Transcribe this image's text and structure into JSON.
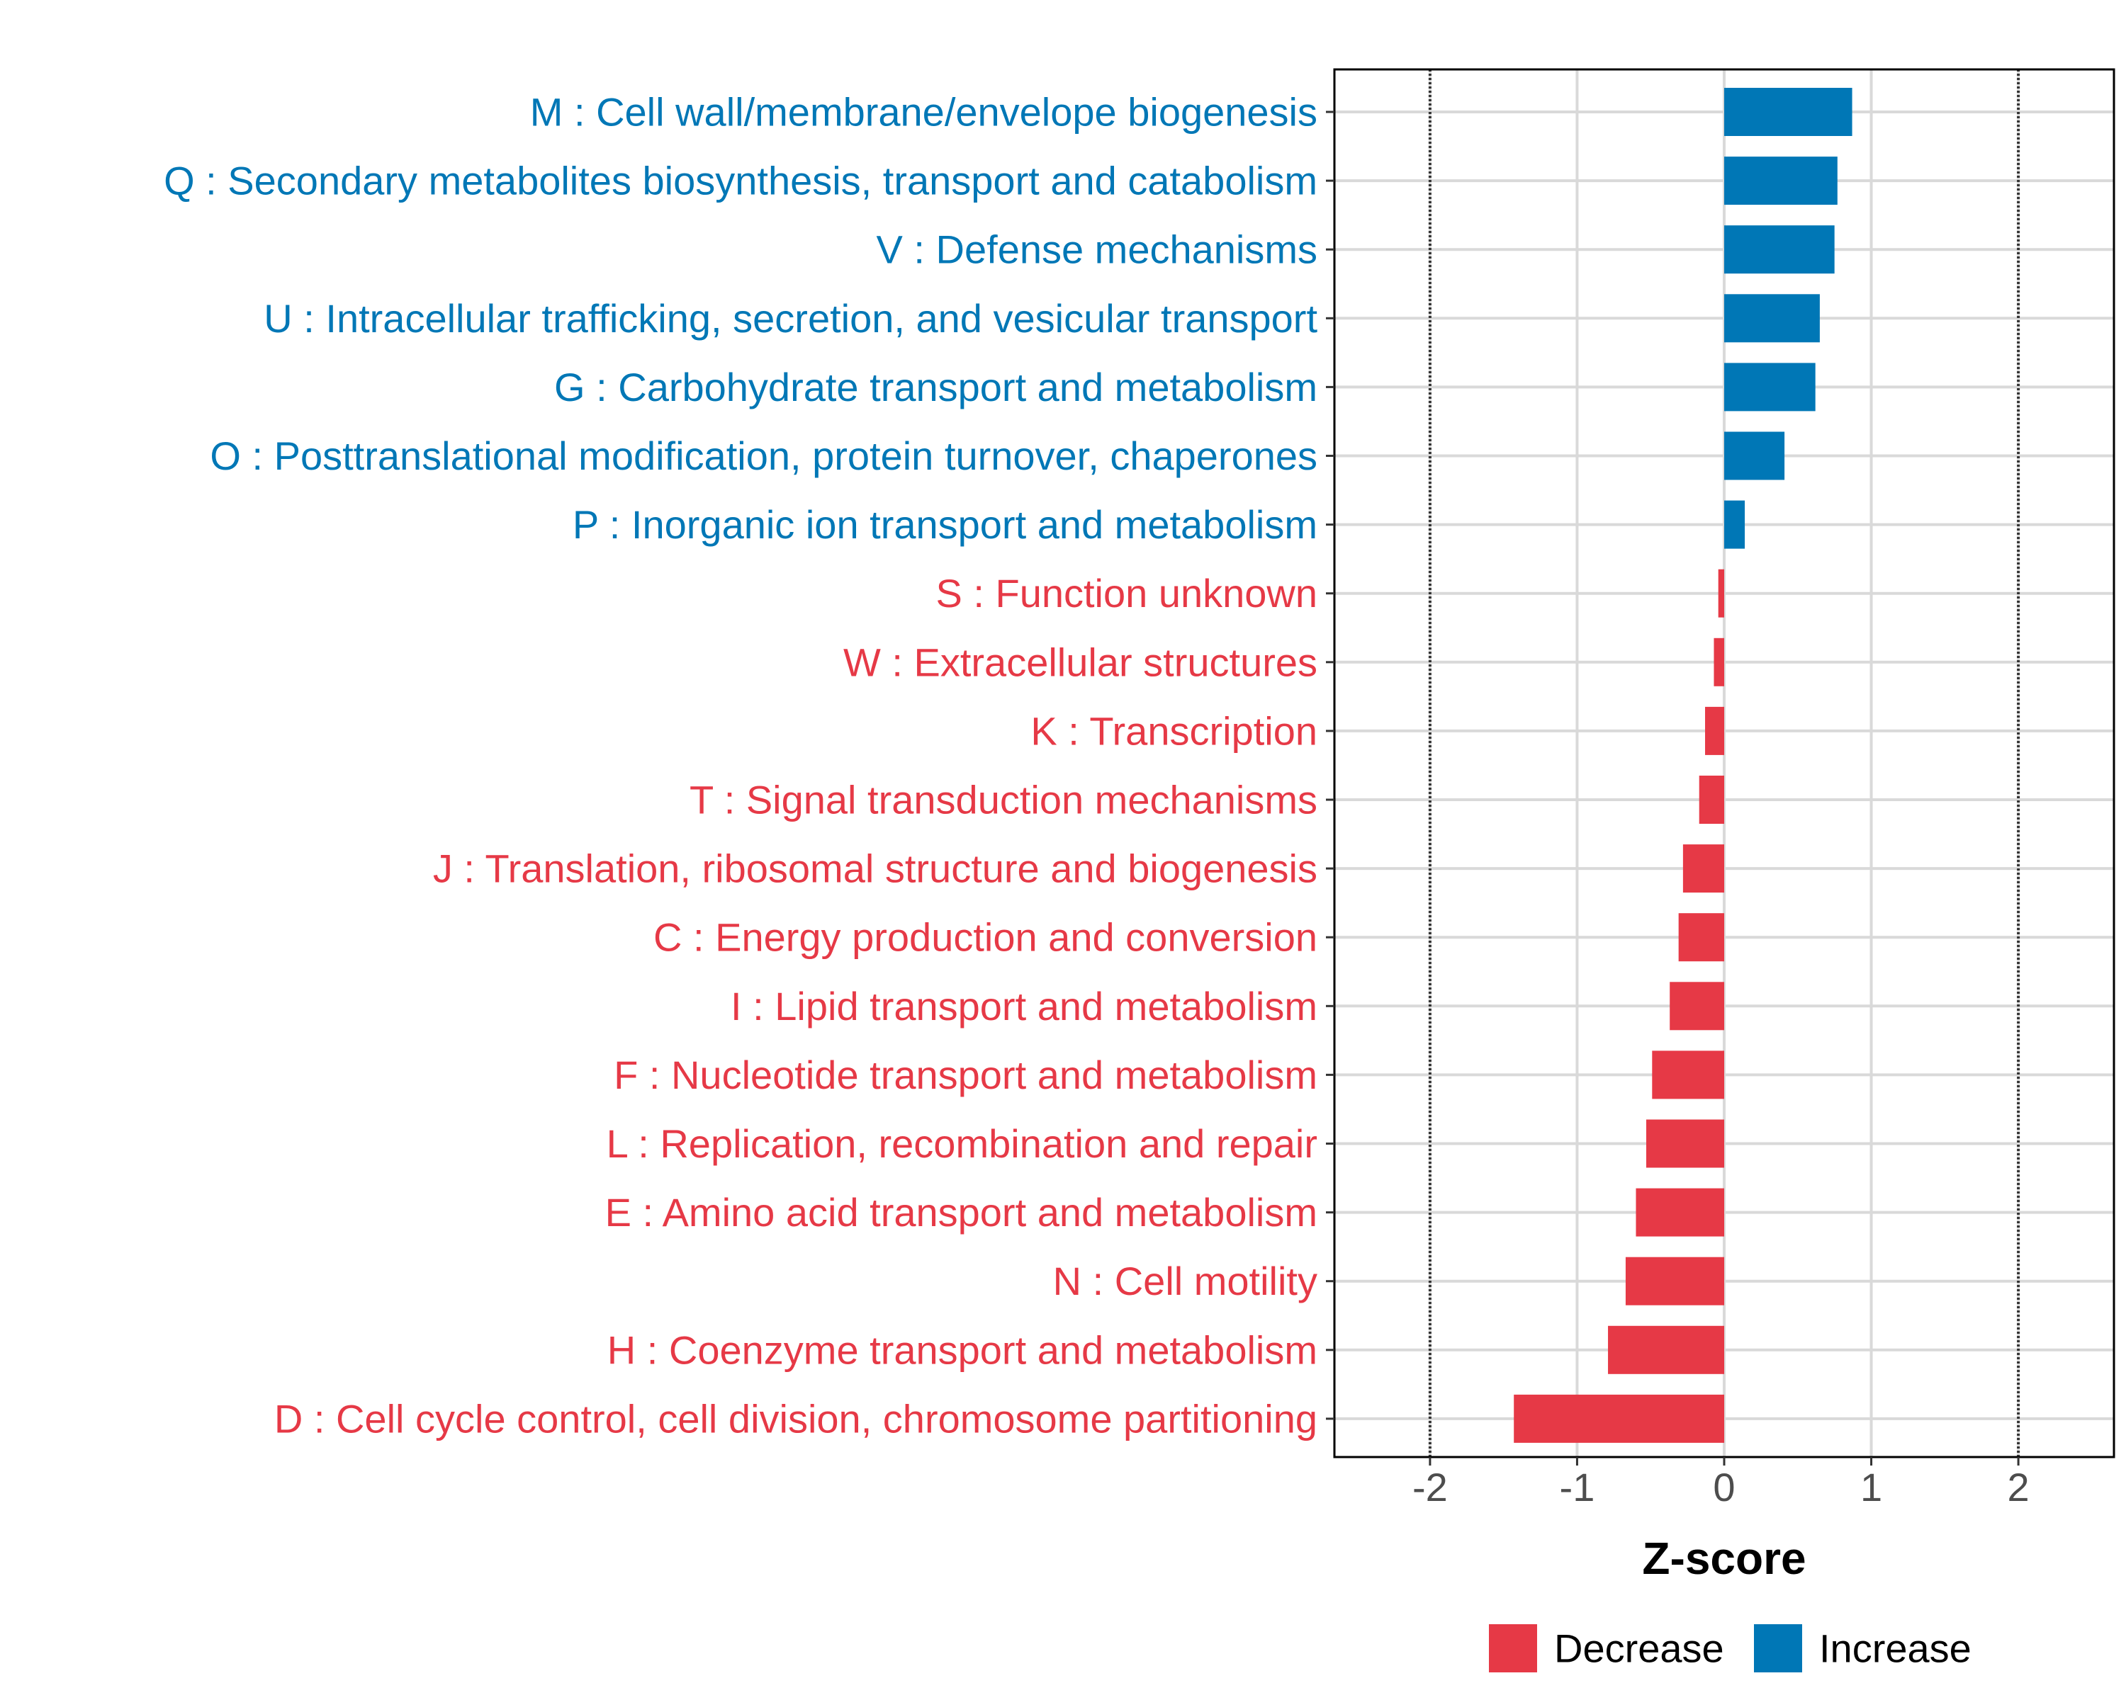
{
  "chart_data": {
    "type": "bar",
    "orientation": "horizontal",
    "xlabel": "Z-score",
    "ylabel": "",
    "xlim": [
      -2.65,
      2.65
    ],
    "x_ticks": [
      -2,
      -1,
      0,
      1,
      2
    ],
    "x_tick_labels": [
      "-2",
      "-1",
      "0",
      "1",
      "2"
    ],
    "reference_lines": [
      -2,
      2
    ],
    "grid": true,
    "categories": [
      "M : Cell wall/membrane/envelope biogenesis",
      "Q : Secondary metabolites biosynthesis, transport and catabolism",
      "V : Defense mechanisms",
      "U : Intracellular trafficking, secretion, and vesicular transport",
      "G : Carbohydrate transport and metabolism",
      "O : Posttranslational modification, protein turnover, chaperones",
      "P : Inorganic ion transport and metabolism",
      "S : Function unknown",
      "W : Extracellular structures",
      "K : Transcription",
      "T : Signal transduction mechanisms",
      "J : Translation, ribosomal structure and biogenesis",
      "C : Energy production and conversion",
      "I : Lipid transport and metabolism",
      "F : Nucleotide transport and metabolism",
      "L : Replication, recombination and repair",
      "E : Amino acid transport and metabolism",
      "N : Cell motility",
      "H : Coenzyme transport and metabolism",
      "D : Cell cycle control, cell division, chromosome partitioning"
    ],
    "values": [
      0.87,
      0.77,
      0.75,
      0.65,
      0.62,
      0.41,
      0.14,
      -0.04,
      -0.07,
      -0.13,
      -0.17,
      -0.28,
      -0.31,
      -0.37,
      -0.49,
      -0.53,
      -0.6,
      -0.67,
      -0.79,
      -1.43
    ],
    "groups": [
      "Increase",
      "Increase",
      "Increase",
      "Increase",
      "Increase",
      "Increase",
      "Increase",
      "Decrease",
      "Decrease",
      "Decrease",
      "Decrease",
      "Decrease",
      "Decrease",
      "Decrease",
      "Decrease",
      "Decrease",
      "Decrease",
      "Decrease",
      "Decrease",
      "Decrease"
    ],
    "legend": {
      "placement": "bottom",
      "entries": [
        {
          "label": "Decrease",
          "color": "#e63946"
        },
        {
          "label": "Increase",
          "color": "#0077b6"
        }
      ]
    },
    "colors": {
      "Increase": "#0077b6",
      "Decrease": "#e63946",
      "grid": "#d9d9d9",
      "reference_line": "#333333",
      "axis": "#000000",
      "tick_label": "#4d4d4d"
    }
  }
}
